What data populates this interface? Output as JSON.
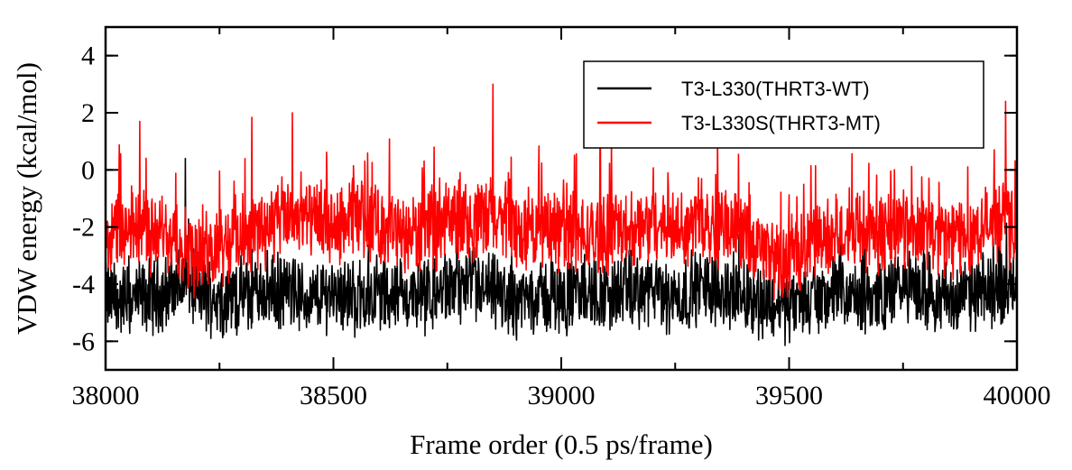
{
  "chart_data": {
    "type": "line",
    "xlabel": "Frame order (0.5 ps/frame)",
    "ylabel": "VDW energy (kcal/mol)",
    "xlim": [
      38000,
      40000
    ],
    "ylim": [
      -7,
      5
    ],
    "x_major_ticks": [
      38000,
      38500,
      39000,
      39500,
      40000
    ],
    "x_tick_labels": [
      "38000",
      "38500",
      "39000",
      "39500",
      "40000"
    ],
    "y_major_ticks": [
      -6,
      -4,
      -2,
      0,
      2,
      4
    ],
    "y_tick_labels": [
      "-6",
      "-4",
      "-2",
      "0",
      "2",
      "4"
    ],
    "x_minor_step": 250,
    "grid": false,
    "legend_position": "top-right",
    "series": [
      {
        "name": "T3-L330(THRT3-WT)",
        "color": "#000000",
        "x": [
          38000,
          38050,
          38100,
          38150,
          38175,
          38200,
          38250,
          38300,
          38350,
          38400,
          38450,
          38500,
          38550,
          38600,
          38650,
          38700,
          38750,
          38800,
          38850,
          38900,
          38950,
          39000,
          39050,
          39100,
          39150,
          39200,
          39250,
          39300,
          39350,
          39400,
          39450,
          39500,
          39550,
          39600,
          39650,
          39700,
          39750,
          39800,
          39850,
          39900,
          39950,
          40000
        ],
        "values": [
          -4.5,
          -4.6,
          -4.4,
          -4.2,
          0.4,
          -4.3,
          -4.5,
          -4.4,
          -4.2,
          -4.3,
          -4.6,
          -4.2,
          -4.5,
          -4.3,
          -4.4,
          -4.5,
          -4.2,
          -4.1,
          -4.3,
          -4.6,
          -4.4,
          -4.5,
          -4.3,
          -4.4,
          -4.2,
          -4.3,
          -4.5,
          -4.1,
          -4.2,
          -4.4,
          -4.6,
          -4.8,
          -4.5,
          -4.3,
          -4.6,
          -4.4,
          -4.1,
          -4.3,
          -4.5,
          -4.4,
          -4.2,
          -4.0
        ]
      },
      {
        "name": "T3-L330S(THRT3-MT)",
        "color": "#ff0000",
        "x": [
          38000,
          38050,
          38075,
          38100,
          38150,
          38200,
          38250,
          38300,
          38350,
          38410,
          38450,
          38500,
          38550,
          38600,
          38650,
          38700,
          38750,
          38800,
          38850,
          38900,
          38950,
          39000,
          39050,
          39100,
          39150,
          39200,
          39250,
          39300,
          39350,
          39400,
          39450,
          39500,
          39550,
          39600,
          39650,
          39700,
          39750,
          39800,
          39850,
          39900,
          39950,
          39975,
          40000
        ],
        "values": [
          -2.0,
          -2.2,
          1.7,
          -2.4,
          -2.1,
          -3.2,
          -2.6,
          -2.3,
          -2.0,
          2.0,
          -1.8,
          -2.1,
          -1.6,
          -2.0,
          -2.3,
          -2.2,
          -1.8,
          -2.0,
          3.0,
          -2.1,
          -2.2,
          -2.0,
          -2.4,
          -2.3,
          -2.1,
          -1.9,
          -2.0,
          -1.8,
          -1.9,
          -2.4,
          -3.0,
          -3.2,
          -2.5,
          -2.3,
          -2.0,
          -2.2,
          -1.9,
          -2.1,
          -2.4,
          -2.2,
          -2.0,
          2.4,
          -2.6
        ]
      }
    ]
  }
}
